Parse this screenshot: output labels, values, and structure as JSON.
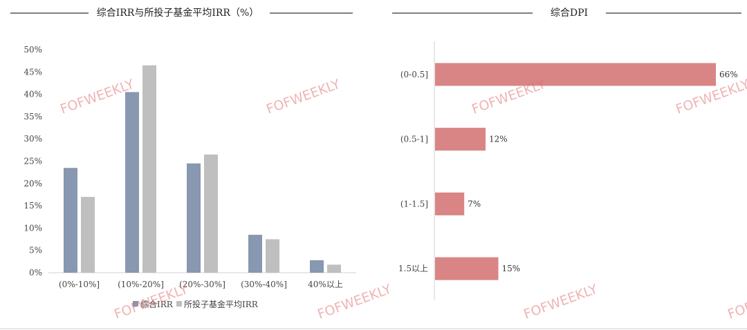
{
  "chart_data": [
    {
      "type": "bar",
      "title": "综合IRR与所投子基金平均IRR（%）",
      "categories": [
        "(0%-10%]",
        "(10%-20%]",
        "(20%-30%]",
        "(30%-40%]",
        "40%以上"
      ],
      "series": [
        {
          "name": "综合IRR",
          "values": [
            23.5,
            40.5,
            24.5,
            8.5,
            2.8
          ],
          "color": "#8798b0"
        },
        {
          "name": "所投子基金平均IRR",
          "values": [
            17,
            46.5,
            26.5,
            7.5,
            1.8
          ],
          "color": "#bfbfbf"
        }
      ],
      "yticks": [
        "0%",
        "5%",
        "10%",
        "15%",
        "20%",
        "25%",
        "30%",
        "35%",
        "40%",
        "45%",
        "50%"
      ],
      "ylim": [
        0,
        50
      ],
      "legend": "bottom",
      "grid": false
    },
    {
      "type": "bar",
      "orientation": "horizontal",
      "title": "综合DPI",
      "categories": [
        "(0-0.5]",
        "(0.5-1]",
        "(1-1.5]",
        "1.5以上"
      ],
      "values": [
        66,
        12,
        7,
        15
      ],
      "labels": [
        "66%",
        "12%",
        "7%",
        "15%"
      ],
      "color": "#d98585",
      "xlim": [
        0,
        66
      ],
      "grid": false
    }
  ],
  "watermark": "FOFWEEKLY"
}
